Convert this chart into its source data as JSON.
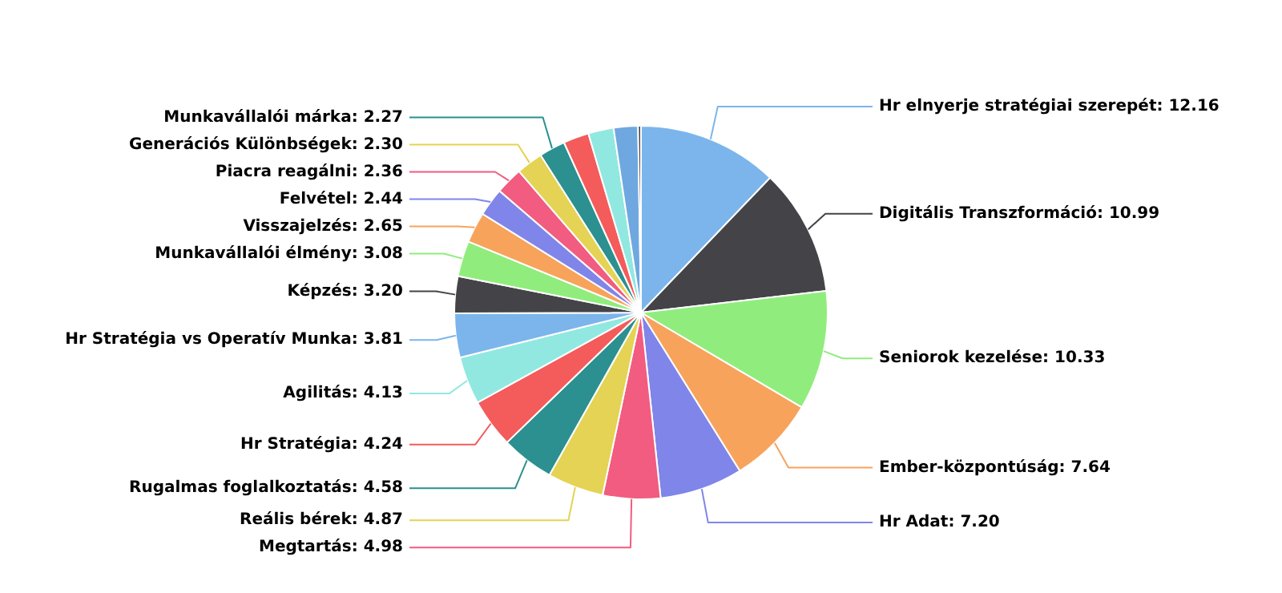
{
  "chart_data": {
    "type": "pie",
    "categories": [
      "Hr elnyerje stratégiai szerepét",
      "Digitális Transzformáció",
      "Seniorok kezelése",
      "Ember-központúság",
      "Hr Adat",
      "Megtartás",
      "Reális bérek",
      "Rugalmas foglalkoztatás",
      "Hr Stratégia",
      "Agilitás",
      "Hr Stratégia vs Operatív Munka",
      "Képzés",
      "Munkavállalói élmény",
      "Visszajelzés",
      "Felvétel",
      "Piacra reagálni",
      "Generációs Különbségek",
      "Munkavállalói márka",
      null,
      null,
      null,
      null
    ],
    "values": [
      12.16,
      10.99,
      10.33,
      7.64,
      7.2,
      4.98,
      4.87,
      4.58,
      4.24,
      4.13,
      3.81,
      3.2,
      3.08,
      2.65,
      2.44,
      2.36,
      2.3,
      2.27,
      2.22,
      2.2,
      2.1,
      0.25
    ],
    "value_labels": [
      "12.16",
      "10.99",
      "10.33",
      "7.64",
      "7.20",
      "4.98",
      "4.87",
      "4.58",
      "4.24",
      "4.13",
      "3.81",
      "3.20",
      "3.08",
      "2.65",
      "2.44",
      "2.36",
      "2.30",
      "2.27",
      null,
      null,
      null,
      null
    ],
    "colors": [
      "#7cb5ec",
      "#434348",
      "#90ed7d",
      "#f7a35c",
      "#8085e9",
      "#f15c80",
      "#e4d354",
      "#2b908f",
      "#f45b5b",
      "#91e8e1",
      "#7cb5ec",
      "#434348",
      "#90ed7d",
      "#f7a35c",
      "#8085e9",
      "#f15c80",
      "#e4d354",
      "#2b908f",
      "#f45b5b",
      "#91e8e1",
      "#6fa8e0",
      "#434348"
    ],
    "legend": false
  }
}
